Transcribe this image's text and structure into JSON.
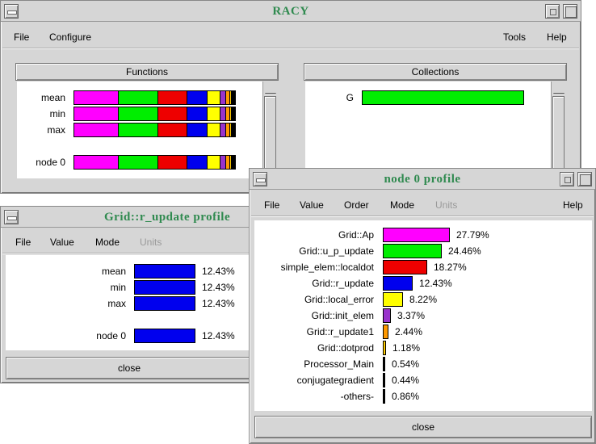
{
  "racy": {
    "title": "RACY",
    "menu": [
      "File",
      "Configure",
      "Tools",
      "Help"
    ],
    "functions_header": "Functions",
    "collections_header": "Collections",
    "rows": [
      {
        "label": "mean"
      },
      {
        "label": "min"
      },
      {
        "label": "max"
      },
      {
        "label": "node  0"
      }
    ],
    "collection_row": {
      "label": "G",
      "color": "#00ee00"
    }
  },
  "profile_colors": {
    "Grid::Ap": "#ff00ff",
    "Grid::u_p_update": "#00ee00",
    "simple_elem::localdot": "#ee0000",
    "Grid::r_update": "#0000ee",
    "Grid::local_error": "#ffff00",
    "Grid::init_elem": "#9933cc",
    "Grid::r_update1": "#ff9900",
    "Grid::dotprod": "#ffcc00",
    "Processor_Main": "#000000",
    "conjugategradient": "#000000",
    "-others-": "#000000"
  },
  "racy_segments": [
    {
      "name": "Grid::Ap",
      "value": 27.79
    },
    {
      "name": "Grid::u_p_update",
      "value": 24.46
    },
    {
      "name": "simple_elem::localdot",
      "value": 18.27
    },
    {
      "name": "Grid::r_update",
      "value": 12.43
    },
    {
      "name": "Grid::local_error",
      "value": 8.22
    },
    {
      "name": "Grid::init_elem",
      "value": 3.37
    },
    {
      "name": "Grid::r_update1",
      "value": 2.44
    },
    {
      "name": "Grid::dotprod",
      "value": 1.18
    },
    {
      "name": "-others-",
      "value": 1.84
    }
  ],
  "rupdate": {
    "title": "Grid::r_update profile",
    "menu": [
      "File",
      "Value",
      "Mode",
      "Units"
    ],
    "color": "#0000ee",
    "rows": [
      {
        "label": "mean",
        "pct": "12.43%",
        "value": 12.43
      },
      {
        "label": "min",
        "pct": "12.43%",
        "value": 12.43
      },
      {
        "label": "max",
        "pct": "12.43%",
        "value": 12.43
      },
      {
        "label": "node  0",
        "pct": "12.43%",
        "value": 12.43
      }
    ],
    "close": "close"
  },
  "node0": {
    "title": "node  0 profile",
    "menu": [
      "File",
      "Value",
      "Order",
      "Mode",
      "Units",
      "Help"
    ],
    "rows": [
      {
        "label": "Grid::Ap",
        "pct": "27.79%",
        "value": 27.79
      },
      {
        "label": "Grid::u_p_update",
        "pct": "24.46%",
        "value": 24.46
      },
      {
        "label": "simple_elem::localdot",
        "pct": "18.27%",
        "value": 18.27
      },
      {
        "label": "Grid::r_update",
        "pct": "12.43%",
        "value": 12.43
      },
      {
        "label": "Grid::local_error",
        "pct": "8.22%",
        "value": 8.22
      },
      {
        "label": "Grid::init_elem",
        "pct": "3.37%",
        "value": 3.37
      },
      {
        "label": "Grid::r_update1",
        "pct": "2.44%",
        "value": 2.44
      },
      {
        "label": "Grid::dotprod",
        "pct": "1.18%",
        "value": 1.18
      },
      {
        "label": "Processor_Main",
        "pct": "0.54%",
        "value": 0.54
      },
      {
        "label": "conjugategradient",
        "pct": "0.44%",
        "value": 0.44
      },
      {
        "label": "-others-",
        "pct": "0.86%",
        "value": 0.86
      }
    ],
    "close": "close"
  }
}
